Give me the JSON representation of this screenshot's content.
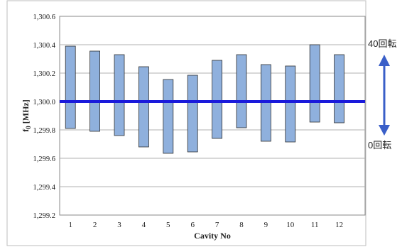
{
  "chart_data": {
    "type": "bar",
    "subtype": "floating-range",
    "xlabel": "Cavity No",
    "ylabel": "f",
    "ylabel_sub": "0",
    "ylabel_unit": "[MHz]",
    "ylim": [
      1299.2,
      1300.6
    ],
    "yticks": [
      1299.2,
      1299.4,
      1299.6,
      1299.8,
      1300.0,
      1300.2,
      1300.4,
      1300.6
    ],
    "ytick_labels": [
      "1,299.2",
      "1,299.4",
      "1,299.6",
      "1,299.8",
      "1,300.0",
      "1,300.2",
      "1,300.4",
      "1,300.6"
    ],
    "grid": true,
    "categories": [
      "1",
      "2",
      "3",
      "4",
      "5",
      "6",
      "7",
      "8",
      "9",
      "10",
      "11",
      "12"
    ],
    "series": [
      {
        "low": [
          1299.81,
          1299.79,
          1299.76,
          1299.68,
          1299.635,
          1299.645,
          1299.74,
          1299.815,
          1299.72,
          1299.715,
          1299.855,
          1299.85
        ],
        "high": [
          1300.39,
          1300.355,
          1300.33,
          1300.245,
          1300.155,
          1300.185,
          1300.29,
          1300.33,
          1300.26,
          1300.25,
          1300.4,
          1300.33
        ],
        "color": "#8fb0dd"
      }
    ],
    "reference_line": {
      "value": 1300.0,
      "color": "#1a1adb"
    },
    "annotations": {
      "top_label": "40回転",
      "bottom_label": "0回転",
      "arrow_color": "#3a5fc8"
    }
  }
}
